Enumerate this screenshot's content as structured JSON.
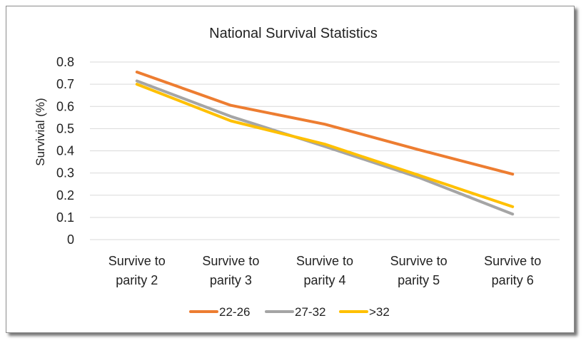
{
  "chart_data": {
    "type": "line",
    "title": "National Survival Statistics",
    "ylabel": "Survivial (%)",
    "xlabel": "",
    "categories": [
      [
        "Survive to",
        "parity 2"
      ],
      [
        "Survive to",
        "parity 3"
      ],
      [
        "Survive to",
        "parity 4"
      ],
      [
        "Survive to",
        "parity 5"
      ],
      [
        "Survive to",
        "parity 6"
      ]
    ],
    "ylim": [
      0,
      0.8
    ],
    "yticks": [
      0,
      0.1,
      0.2,
      0.3,
      0.4,
      0.5,
      0.6,
      0.7,
      0.8
    ],
    "grid": true,
    "legend_position": "bottom",
    "series": [
      {
        "name": "22-26",
        "color": "#ED7D31",
        "values": [
          0.755,
          0.605,
          0.52,
          0.405,
          0.295
        ]
      },
      {
        "name": "27-32",
        "color": "#A5A5A5",
        "values": [
          0.715,
          0.555,
          0.42,
          0.28,
          0.115
        ]
      },
      {
        "name": ">32",
        "color": "#FFC000",
        "values": [
          0.7,
          0.535,
          0.43,
          0.29,
          0.148
        ]
      }
    ]
  }
}
